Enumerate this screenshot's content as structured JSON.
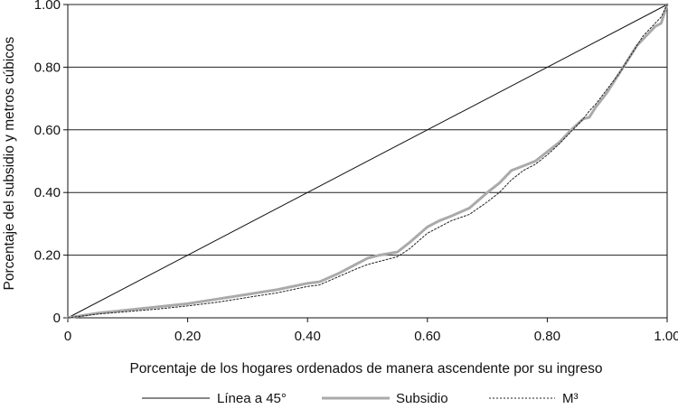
{
  "chart_data": {
    "type": "line",
    "title": "",
    "xlabel": "Porcentaje de los hogares ordenados de manera ascendente por su ingreso",
    "ylabel": "Porcentaje del subsidio y metros cúbicos",
    "xlim": [
      0,
      1
    ],
    "ylim": [
      0,
      1
    ],
    "xticks": [
      0,
      0.2,
      0.4,
      0.6,
      0.8,
      1.0
    ],
    "xtick_labels": [
      "0",
      "0.20",
      "0.40",
      "0.60",
      "0.80",
      "1.00"
    ],
    "yticks": [
      0,
      0.2,
      0.4,
      0.6,
      0.8,
      1.0
    ],
    "ytick_labels": [
      "0",
      "0.20",
      "0.40",
      "0.60",
      "0.80",
      "1.00"
    ],
    "grid": "horizontal",
    "legend_position": "bottom",
    "colors": {
      "line45": "#111111",
      "subsidio": "#aaaaaa",
      "m3": "#222222",
      "grid": "#222222"
    },
    "series": [
      {
        "name": "Línea a 45°",
        "style": "solid-thin-black",
        "x": [
          0,
          1
        ],
        "y": [
          0,
          1
        ]
      },
      {
        "name": "Subsidio",
        "style": "solid-thick-gray",
        "x": [
          0,
          0.05,
          0.1,
          0.15,
          0.2,
          0.25,
          0.3,
          0.35,
          0.4,
          0.42,
          0.45,
          0.48,
          0.5,
          0.52,
          0.55,
          0.57,
          0.6,
          0.62,
          0.64,
          0.67,
          0.7,
          0.72,
          0.74,
          0.76,
          0.78,
          0.8,
          0.82,
          0.84,
          0.86,
          0.87,
          0.88,
          0.9,
          0.92,
          0.94,
          0.95,
          0.96,
          0.97,
          0.98,
          0.99,
          1.0
        ],
        "y": [
          0,
          0.015,
          0.025,
          0.035,
          0.045,
          0.06,
          0.075,
          0.09,
          0.11,
          0.115,
          0.14,
          0.17,
          0.19,
          0.2,
          0.21,
          0.24,
          0.29,
          0.31,
          0.325,
          0.35,
          0.4,
          0.43,
          0.47,
          0.485,
          0.5,
          0.53,
          0.56,
          0.6,
          0.635,
          0.64,
          0.67,
          0.72,
          0.78,
          0.84,
          0.87,
          0.89,
          0.91,
          0.93,
          0.94,
          1.0
        ]
      },
      {
        "name": "M³",
        "style": "dashed-thin-black",
        "x": [
          0,
          0.05,
          0.1,
          0.15,
          0.2,
          0.25,
          0.3,
          0.35,
          0.4,
          0.42,
          0.45,
          0.48,
          0.5,
          0.52,
          0.55,
          0.57,
          0.6,
          0.62,
          0.64,
          0.67,
          0.7,
          0.72,
          0.74,
          0.76,
          0.78,
          0.8,
          0.82,
          0.84,
          0.86,
          0.87,
          0.88,
          0.9,
          0.92,
          0.94,
          0.95,
          0.96,
          0.97,
          0.98,
          0.99,
          1.0
        ],
        "y": [
          0,
          0.012,
          0.02,
          0.028,
          0.038,
          0.05,
          0.065,
          0.08,
          0.1,
          0.105,
          0.13,
          0.155,
          0.17,
          0.18,
          0.195,
          0.22,
          0.27,
          0.29,
          0.31,
          0.33,
          0.37,
          0.4,
          0.44,
          0.47,
          0.49,
          0.52,
          0.555,
          0.595,
          0.635,
          0.66,
          0.68,
          0.73,
          0.78,
          0.84,
          0.87,
          0.9,
          0.92,
          0.94,
          0.96,
          1.0
        ]
      }
    ]
  }
}
